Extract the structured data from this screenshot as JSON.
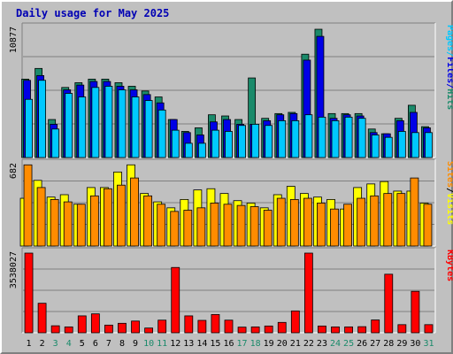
{
  "colors": {
    "background": "#c0c0c0",
    "panel": "#c0c0c0",
    "grid": "#808080",
    "title": "#0000b4",
    "hits": "#1a8a6a",
    "files": "#0000e6",
    "pages": "#00c8ff",
    "visits": "#ffff00",
    "sites": "#ff8c00",
    "kbytes": "#ff0000",
    "weekend": "#1a8a6a",
    "weekday": "#000000"
  },
  "chart_data": {
    "title": "Daily usage for May 2025",
    "days": [
      "1",
      "2",
      "3",
      "4",
      "5",
      "6",
      "7",
      "8",
      "9",
      "10",
      "11",
      "12",
      "13",
      "14",
      "15",
      "16",
      "17",
      "18",
      "19",
      "20",
      "21",
      "22",
      "23",
      "24",
      "25",
      "26",
      "27",
      "28",
      "29",
      "30",
      "31"
    ],
    "weekend_days": [
      "3",
      "4",
      "10",
      "11",
      "17",
      "18",
      "24",
      "25",
      "31"
    ],
    "panels": [
      {
        "id": "hits",
        "type": "bar",
        "max_label": "10877",
        "ylim": [
          0,
          10877
        ],
        "legend": [
          {
            "label": "Hits",
            "color": "#1a8a6a"
          },
          {
            "label": "Files",
            "color": "#0000e6"
          },
          {
            "label": "Pages",
            "color": "#00c8ff"
          }
        ],
        "series": [
          {
            "name": "Hits",
            "values": [
              6600,
              7500,
              3200,
              5900,
              6300,
              6600,
              6600,
              6300,
              6000,
              5600,
              5100,
              3200,
              2200,
              2500,
              3600,
              3500,
              3200,
              6700,
              3300,
              3700,
              3800,
              8700,
              10800,
              3700,
              3700,
              3700,
              2400,
              2000,
              3300,
              4400,
              2600
            ]
          },
          {
            "name": "Files",
            "values": [
              6500,
              6900,
              2800,
              5700,
              6100,
              6400,
              6400,
              6000,
              5700,
              5300,
              4600,
              3200,
              2100,
              1900,
              3000,
              3200,
              2800,
              2800,
              3100,
              3600,
              3700,
              8200,
              10200,
              3300,
              3600,
              3500,
              2100,
              2000,
              3100,
              3800,
              2500
            ]
          },
          {
            "name": "Pages",
            "values": [
              4900,
              6500,
              2400,
              5400,
              5100,
              5900,
              6000,
              5700,
              5100,
              4800,
              4000,
              2300,
              1200,
              1200,
              2300,
              2200,
              2700,
              2800,
              2700,
              3100,
              3100,
              3600,
              3400,
              3100,
              3400,
              3300,
              1900,
              1700,
              2200,
              2100,
              2100
            ]
          }
        ]
      },
      {
        "id": "visits",
        "type": "bar",
        "max_label": "682",
        "ylim": [
          0,
          682
        ],
        "legend": [
          {
            "label": "Visits",
            "color": "#ffff00"
          },
          {
            "label": "/",
            "color": "#000000"
          },
          {
            "label": "Sites",
            "color": "#ff8c00"
          }
        ],
        "series": [
          {
            "name": "Visits",
            "values": [
              400,
              550,
              410,
              430,
              350,
              490,
              490,
              620,
              680,
              440,
              370,
              320,
              390,
              470,
              480,
              440,
              380,
              360,
              320,
              430,
              500,
              440,
              410,
              390,
              310,
              490,
              520,
              540,
              460,
              460,
              360
            ]
          },
          {
            "name": "Sites",
            "values": [
              680,
              490,
              390,
              370,
              350,
              420,
              480,
              510,
              570,
              420,
              350,
              290,
              300,
              320,
              360,
              350,
              340,
              330,
              300,
              400,
              390,
              400,
              360,
              310,
              350,
              400,
              420,
              440,
              440,
              570,
              350
            ]
          }
        ]
      },
      {
        "id": "kbytes",
        "type": "bar",
        "max_label": "3538027",
        "ylim": [
          0,
          3538027
        ],
        "legend": [
          {
            "label": "KBytes",
            "color": "#ff0000"
          }
        ],
        "series": [
          {
            "name": "KBytes",
            "values": [
              3538027,
              1310000,
              310000,
              260000,
              750000,
              840000,
              340000,
              420000,
              520000,
              210000,
              560000,
              2900000,
              750000,
              550000,
              810000,
              560000,
              250000,
              260000,
              300000,
              460000,
              970000,
              3538027,
              300000,
              260000,
              260000,
              270000,
              570000,
              2600000,
              360000,
              1840000,
              360000
            ]
          }
        ]
      }
    ]
  }
}
